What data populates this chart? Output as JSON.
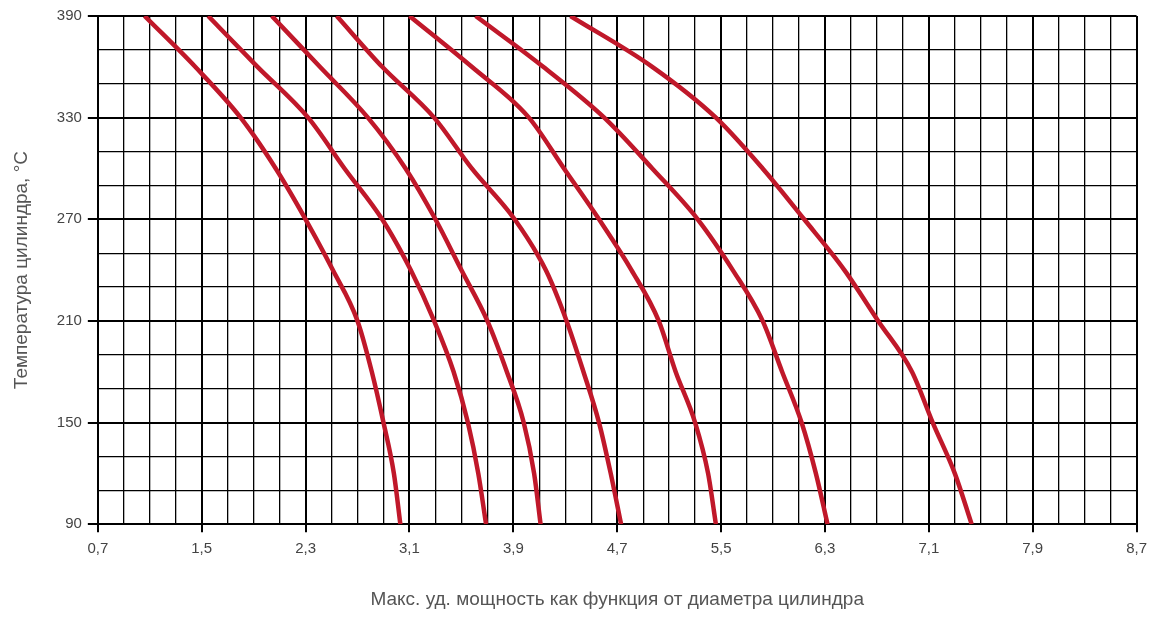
{
  "chart_data": {
    "type": "line",
    "xlabel": "Макс. уд. мощность как функция от диаметра цилиндра",
    "ylabel": "Температура цилиндра, °C",
    "xlim": [
      0.7,
      8.7
    ],
    "ylim": [
      90,
      390
    ],
    "xticks": [
      {
        "value": 0.7,
        "label": "0,7"
      },
      {
        "value": 0.9,
        "label": null
      },
      {
        "value": 1.1,
        "label": null
      },
      {
        "value": 1.3,
        "label": null
      },
      {
        "value": 1.5,
        "label": "1,5"
      },
      {
        "value": 1.7,
        "label": null
      },
      {
        "value": 1.9,
        "label": null
      },
      {
        "value": 2.1,
        "label": null
      },
      {
        "value": 2.3,
        "label": "2,3"
      },
      {
        "value": 2.5,
        "label": null
      },
      {
        "value": 2.7,
        "label": null
      },
      {
        "value": 2.9,
        "label": null
      },
      {
        "value": 3.1,
        "label": "3,1"
      },
      {
        "value": 3.3,
        "label": null
      },
      {
        "value": 3.5,
        "label": null
      },
      {
        "value": 3.7,
        "label": null
      },
      {
        "value": 3.9,
        "label": "3,9"
      },
      {
        "value": 4.1,
        "label": null
      },
      {
        "value": 4.3,
        "label": null
      },
      {
        "value": 4.5,
        "label": null
      },
      {
        "value": 4.7,
        "label": "4,7"
      },
      {
        "value": 4.9,
        "label": null
      },
      {
        "value": 5.1,
        "label": null
      },
      {
        "value": 5.3,
        "label": null
      },
      {
        "value": 5.5,
        "label": "5,5"
      },
      {
        "value": 5.7,
        "label": null
      },
      {
        "value": 5.9,
        "label": null
      },
      {
        "value": 6.1,
        "label": null
      },
      {
        "value": 6.3,
        "label": "6,3"
      },
      {
        "value": 6.5,
        "label": null
      },
      {
        "value": 6.7,
        "label": null
      },
      {
        "value": 6.9,
        "label": null
      },
      {
        "value": 7.1,
        "label": "7,1"
      },
      {
        "value": 7.3,
        "label": null
      },
      {
        "value": 7.5,
        "label": null
      },
      {
        "value": 7.7,
        "label": null
      },
      {
        "value": 7.9,
        "label": "7,9"
      },
      {
        "value": 8.1,
        "label": null
      },
      {
        "value": 8.3,
        "label": null
      },
      {
        "value": 8.5,
        "label": null
      },
      {
        "value": 8.7,
        "label": "8,7"
      }
    ],
    "yticks": [
      90,
      {
        "value": 110,
        "label": null
      },
      {
        "value": 130,
        "label": null
      },
      150,
      {
        "value": 170,
        "label": null
      },
      {
        "value": 190,
        "label": null
      },
      210,
      {
        "value": 230,
        "label": null
      },
      {
        "value": 250,
        "label": null
      },
      270,
      {
        "value": 290,
        "label": null
      },
      {
        "value": 310,
        "label": null
      },
      330,
      {
        "value": 350,
        "label": null
      },
      {
        "value": 370,
        "label": null
      },
      390
    ],
    "grid": true,
    "legend": false,
    "marker": "none",
    "line_style": "solid",
    "series": [
      {
        "color": "#c0182a",
        "x": [
          1.06,
          1.45,
          1.8,
          2.07,
          2.3,
          2.51,
          2.7,
          2.81,
          2.9,
          2.98,
          3.03
        ],
        "values": [
          390,
          360,
          330,
          300,
          270,
          240,
          210,
          180,
          150,
          120,
          90
        ]
      },
      {
        "color": "#c0182a",
        "x": [
          1.55,
          1.93,
          2.32,
          2.6,
          2.89,
          3.11,
          3.29,
          3.44,
          3.55,
          3.63,
          3.69
        ],
        "values": [
          390,
          360,
          330,
          300,
          270,
          240,
          210,
          180,
          150,
          120,
          90
        ]
      },
      {
        "color": "#c0182a",
        "x": [
          2.04,
          2.41,
          2.78,
          3.07,
          3.3,
          3.5,
          3.7,
          3.85,
          3.98,
          4.06,
          4.11
        ],
        "values": [
          390,
          360,
          330,
          300,
          270,
          240,
          210,
          180,
          150,
          120,
          90
        ]
      },
      {
        "color": "#c0182a",
        "x": [
          2.54,
          2.89,
          3.29,
          3.58,
          3.91,
          4.15,
          4.31,
          4.44,
          4.56,
          4.65,
          4.73
        ],
        "values": [
          390,
          360,
          330,
          300,
          270,
          240,
          210,
          180,
          150,
          120,
          90
        ]
      },
      {
        "color": "#c0182a",
        "x": [
          3.1,
          3.58,
          4.02,
          4.29,
          4.56,
          4.81,
          5.02,
          5.15,
          5.3,
          5.4,
          5.46
        ],
        "values": [
          390,
          360,
          330,
          300,
          270,
          240,
          210,
          180,
          150,
          120,
          90
        ]
      },
      {
        "color": "#c0182a",
        "x": [
          3.61,
          4.13,
          4.6,
          4.97,
          5.32,
          5.59,
          5.82,
          5.97,
          6.12,
          6.23,
          6.32
        ],
        "values": [
          390,
          360,
          330,
          300,
          270,
          240,
          210,
          180,
          150,
          120,
          90
        ]
      },
      {
        "color": "#c0182a",
        "x": [
          4.34,
          4.97,
          5.46,
          5.82,
          6.14,
          6.45,
          6.71,
          6.97,
          7.13,
          7.3,
          7.43
        ],
        "values": [
          390,
          360,
          330,
          300,
          270,
          240,
          210,
          180,
          150,
          120,
          90
        ]
      }
    ]
  }
}
